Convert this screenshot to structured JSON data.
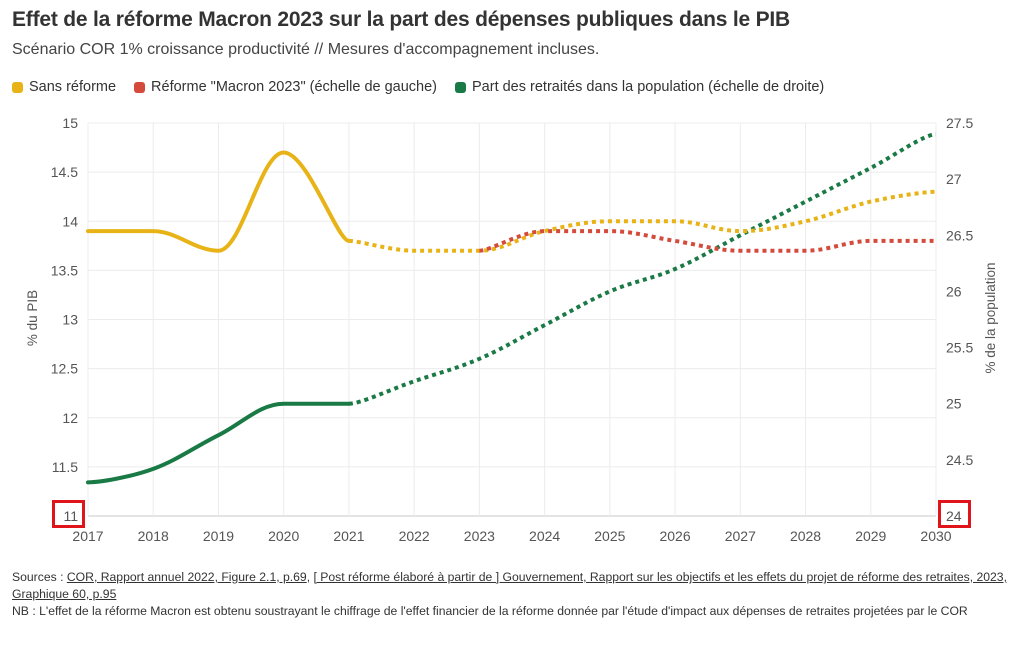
{
  "title": "Effet de la réforme Macron 2023 sur la part des dépenses publiques dans le PIB",
  "subtitle": "Scénario COR 1% croissance productivité // Mesures d'accompagnement incluses.",
  "legend": [
    {
      "label": "Sans réforme",
      "color": "#e8b317"
    },
    {
      "label": "Réforme \"Macron 2023\" (échelle de gauche)",
      "color": "#d44b3c"
    },
    {
      "label": "Part des retraités dans la population (échelle de droite)",
      "color": "#1a7a45"
    }
  ],
  "sources": {
    "prefix": "Sources :",
    "link1": "COR, Rapport annuel 2022, Figure 2.1, p.69",
    "separator": ",",
    "link2": "[ Post réforme élaboré à partir de ] Gouvernement, Rapport sur les objectifs et les effets du projet de réforme des retraites, 2023, Graphique 60, p.95",
    "note": "NB : L'effet de la réforme Macron est obtenu soustrayant le chiffrage de l'effet financier de la réforme donnée par l'étude d'impact aux dépenses de retraites projetées par le COR"
  },
  "chart_data": {
    "type": "line",
    "x": [
      2017,
      2018,
      2019,
      2020,
      2021,
      2022,
      2023,
      2024,
      2025,
      2026,
      2027,
      2028,
      2029,
      2030
    ],
    "xticks": [
      "2017",
      "2018",
      "2019",
      "2020",
      "2021",
      "2022",
      "2023",
      "2024",
      "2025",
      "2026",
      "2027",
      "2028",
      "2029",
      "2030"
    ],
    "ylabel_left": "% du PIB",
    "ylabel_right": "% de la population",
    "ylim_left": [
      11,
      15
    ],
    "ylim_right": [
      24,
      27.5
    ],
    "yticks_left": [
      "11",
      "11.5",
      "12",
      "12.5",
      "13",
      "13.5",
      "14",
      "14.5",
      "15"
    ],
    "yticks_right": [
      "24",
      "24.5",
      "25",
      "25.5",
      "26",
      "26.5",
      "27",
      "27.5"
    ],
    "grid": true,
    "highlighted_ticks": [
      "11",
      "24"
    ],
    "series": [
      {
        "name": "Sans réforme",
        "axis": "left",
        "color": "#e8b317",
        "x": [
          2017,
          2018,
          2019,
          2020,
          2021
        ],
        "y": [
          13.9,
          13.9,
          13.7,
          14.7,
          13.8
        ],
        "style": "solid"
      },
      {
        "name": "Sans réforme",
        "axis": "left",
        "color": "#e8b317",
        "x": [
          2021,
          2022,
          2023,
          2024,
          2025,
          2026,
          2027,
          2028,
          2029,
          2030
        ],
        "y": [
          13.8,
          13.7,
          13.7,
          13.9,
          14.0,
          14.0,
          13.9,
          14.0,
          14.2,
          14.3
        ],
        "style": "dotted"
      },
      {
        "name": "Réforme \"Macron 2023\" (échelle de gauche)",
        "axis": "left",
        "color": "#d44b3c",
        "x": [
          2023,
          2024,
          2025,
          2026,
          2027,
          2028,
          2029,
          2030
        ],
        "y": [
          13.7,
          13.9,
          13.9,
          13.8,
          13.7,
          13.7,
          13.8,
          13.8
        ],
        "style": "dotted"
      },
      {
        "name": "Part des retraités dans la population (échelle de droite)",
        "axis": "right",
        "color": "#1a7a45",
        "x": [
          2017,
          2018,
          2019,
          2020,
          2021
        ],
        "y": [
          24.3,
          24.42,
          24.72,
          25.0,
          25.0
        ],
        "style": "solid"
      },
      {
        "name": "Part des retraités dans la population (échelle de droite)",
        "axis": "right",
        "color": "#1a7a45",
        "x": [
          2021,
          2022,
          2023,
          2024,
          2025,
          2026,
          2027,
          2028,
          2029,
          2030
        ],
        "y": [
          25.0,
          25.2,
          25.4,
          25.7,
          26.0,
          26.2,
          26.5,
          26.8,
          27.1,
          27.4
        ],
        "style": "dotted"
      }
    ]
  }
}
